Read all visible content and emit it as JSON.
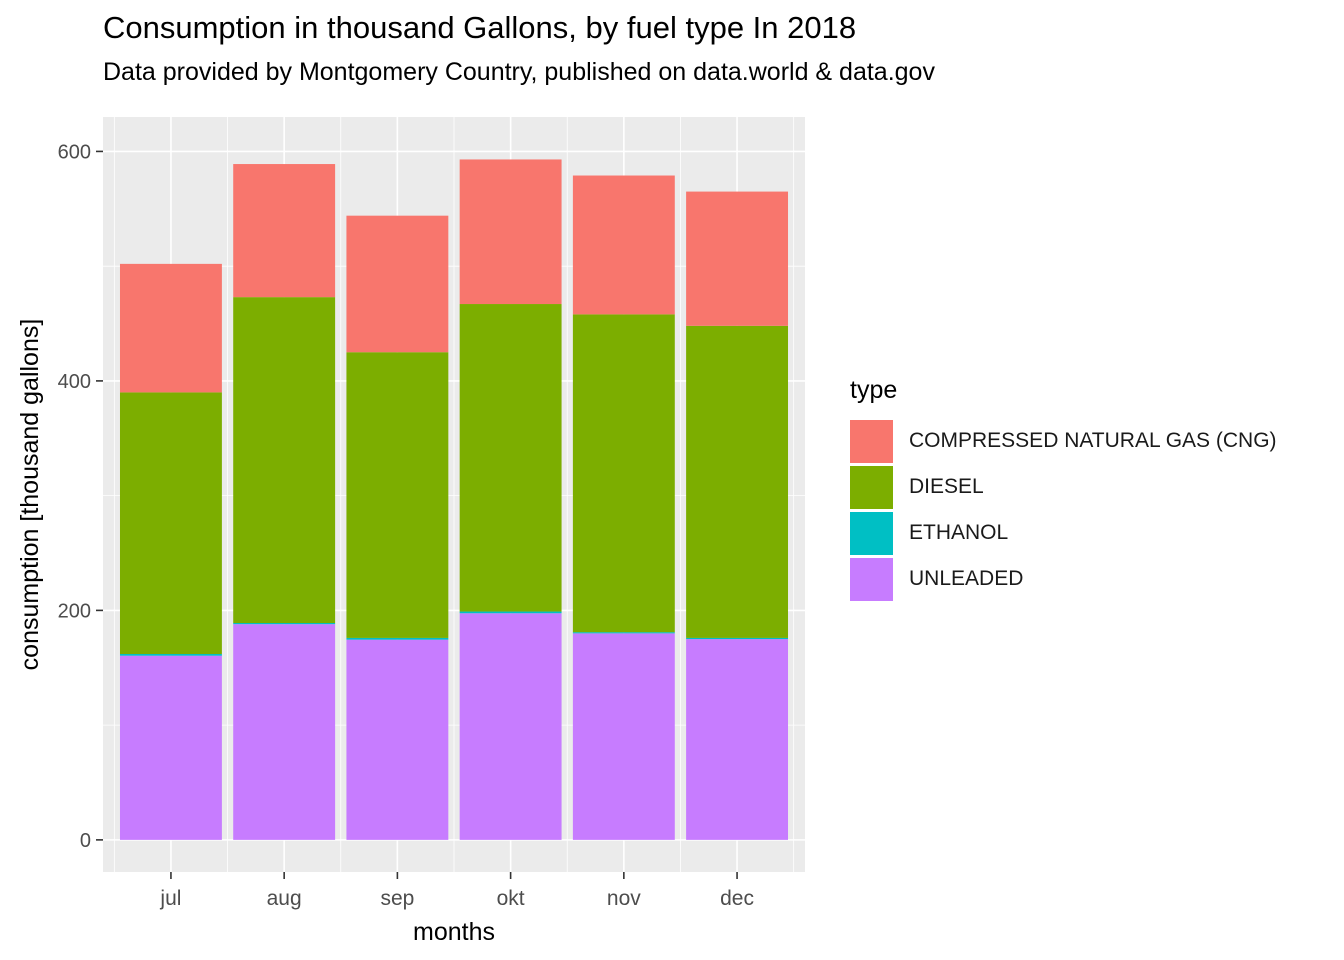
{
  "chart_data": {
    "type": "bar",
    "stacked": true,
    "title": "Consumption in thousand Gallons, by fuel type In 2018",
    "subtitle": "Data provided by Montgomery Country, published on data.world & data.gov",
    "xlabel": "months",
    "ylabel": "consumption [thousand gallons]",
    "categories": [
      "jul",
      "aug",
      "sep",
      "okt",
      "nov",
      "dec"
    ],
    "ylim": [
      -28,
      630
    ],
    "yticks": [
      0,
      200,
      400,
      600
    ],
    "ytick_labels": [
      "0",
      "200",
      "400",
      "600"
    ],
    "grid": true,
    "legend_title": "type",
    "legend_position": "right",
    "series": [
      {
        "name": "COMPRESSED NATURAL GAS (CNG)",
        "color": "#F8766D",
        "values": [
          112,
          116,
          119,
          126,
          121,
          117
        ]
      },
      {
        "name": "DIESEL",
        "color": "#7CAE00",
        "values": [
          228,
          284,
          249,
          268,
          277,
          272
        ]
      },
      {
        "name": "ETHANOL",
        "color": "#00BFC4",
        "values": [
          1.5,
          1.0,
          1.5,
          1.5,
          1.0,
          1.0
        ]
      },
      {
        "name": "UNLEADED",
        "color": "#C77CFF",
        "values": [
          160.5,
          188,
          174.5,
          197.5,
          180,
          175
        ]
      }
    ]
  }
}
